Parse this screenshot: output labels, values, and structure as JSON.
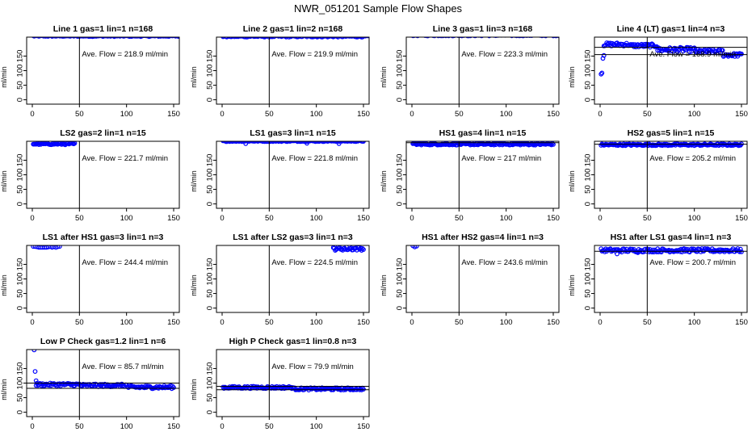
{
  "page_title": "NWR_051201  Sample Flow Shapes",
  "colors": {
    "points": "#0000ff",
    "axes": "#000000",
    "background": "#ffffff"
  },
  "chart_data": [
    {
      "type": "scatter",
      "title": "Line 1 gas=1 lin=1 n=168",
      "ylabel": "ml/min",
      "xlim": [
        0,
        150
      ],
      "ylim": [
        -15,
        215
      ],
      "xticks": [
        0,
        50,
        100,
        150
      ],
      "yticks": [
        0,
        50,
        100,
        150
      ],
      "annotation": "Ave. Flow =  218.9  ml/min",
      "vline_x": 50,
      "hlines": [],
      "series": [
        {
          "segments": [
            {
              "x0": 1,
              "x1": 168,
              "base": 219,
              "jitter": 2,
              "step": 1
            }
          ],
          "outliers": []
        }
      ]
    },
    {
      "type": "scatter",
      "title": "Line 2 gas=1 lin=2 n=168",
      "ylabel": "ml/min",
      "xlim": [
        0,
        150
      ],
      "ylim": [
        -15,
        215
      ],
      "xticks": [
        0,
        50,
        100,
        150
      ],
      "yticks": [
        0,
        50,
        100,
        150
      ],
      "annotation": "Ave. Flow =  219.9  ml/min",
      "vline_x": 50,
      "hlines": [],
      "series": [
        {
          "segments": [
            {
              "x0": 1,
              "x1": 168,
              "base": 218,
              "jitter": 3,
              "step": 1
            }
          ],
          "outliers": []
        }
      ]
    },
    {
      "type": "scatter",
      "title": "Line 3 gas=1 lin=3 n=168",
      "ylabel": "ml/min",
      "xlim": [
        0,
        150
      ],
      "ylim": [
        -15,
        215
      ],
      "xticks": [
        0,
        50,
        100,
        150
      ],
      "yticks": [
        0,
        50,
        100,
        150
      ],
      "annotation": "Ave. Flow =  223.3  ml/min",
      "vline_x": 50,
      "hlines": [],
      "series": [
        {
          "segments": [
            {
              "x0": 1,
              "x1": 168,
              "base": 222,
              "jitter": 3,
              "step": 1
            }
          ],
          "outliers": []
        }
      ]
    },
    {
      "type": "scatter",
      "title": "Line 4 (LT) gas=1 lin=4 n=3",
      "ylabel": "ml/min",
      "xlim": [
        0,
        150
      ],
      "ylim": [
        -15,
        215
      ],
      "xticks": [
        0,
        50,
        100,
        150
      ],
      "yticks": [
        0,
        50,
        100,
        150
      ],
      "annotation": "Ave. Flow =  168.9  ml/min",
      "vline_x": 50,
      "hlines": [
        180,
        155
      ],
      "series": [
        {
          "segments": [
            {
              "x0": 4,
              "x1": 30,
              "base": 190,
              "jitter": 6,
              "step": 1
            },
            {
              "x0": 31,
              "x1": 60,
              "base": 186,
              "jitter": 6,
              "step": 1
            },
            {
              "x0": 61,
              "x1": 100,
              "base": 172,
              "jitter": 8,
              "step": 1
            },
            {
              "x0": 101,
              "x1": 130,
              "base": 166,
              "jitter": 7,
              "step": 1
            },
            {
              "x0": 131,
              "x1": 150,
              "base": 154,
              "jitter": 6,
              "step": 1
            }
          ],
          "outliers": [
            [
              1,
              88
            ],
            [
              2,
              92
            ],
            [
              3,
              142
            ],
            [
              4,
              152
            ]
          ]
        }
      ]
    },
    {
      "type": "scatter",
      "title": "LS2 gas=2 lin=1 n=15",
      "ylabel": "ml/min",
      "xlim": [
        0,
        150
      ],
      "ylim": [
        -15,
        215
      ],
      "xticks": [
        0,
        50,
        100,
        150
      ],
      "yticks": [
        0,
        50,
        100,
        150
      ],
      "annotation": "Ave. Flow =  221.7  ml/min",
      "vline_x": 50,
      "hlines": [],
      "series": [
        {
          "segments": [
            {
              "x0": 1,
              "x1": 45,
              "base": 206,
              "jitter": 3,
              "step": 1
            }
          ],
          "outliers": []
        }
      ]
    },
    {
      "type": "scatter",
      "title": "LS1 gas=3 lin=1 n=15",
      "ylabel": "ml/min",
      "xlim": [
        0,
        150
      ],
      "ylim": [
        -15,
        215
      ],
      "xticks": [
        0,
        50,
        100,
        150
      ],
      "yticks": [
        0,
        50,
        100,
        150
      ],
      "annotation": "Ave. Flow =  221.8  ml/min",
      "vline_x": 50,
      "hlines": [],
      "series": [
        {
          "segments": [
            {
              "x0": 1,
              "x1": 150,
              "base": 216,
              "jitter": 2,
              "step": 1
            }
          ],
          "outliers": [
            [
              25,
              207
            ],
            [
              90,
              208
            ],
            [
              124,
              207
            ]
          ]
        }
      ]
    },
    {
      "type": "scatter",
      "title": "HS1 gas=4 lin=1 n=15",
      "ylabel": "ml/min",
      "xlim": [
        0,
        150
      ],
      "ylim": [
        -15,
        215
      ],
      "xticks": [
        0,
        50,
        100,
        150
      ],
      "yticks": [
        0,
        50,
        100,
        150
      ],
      "annotation": "Ave. Flow =  217  ml/min",
      "vline_x": 50,
      "hlines": [
        210
      ],
      "series": [
        {
          "segments": [
            {
              "x0": 1,
              "x1": 150,
              "base": 205,
              "jitter": 3,
              "step": 1
            }
          ],
          "outliers": []
        }
      ]
    },
    {
      "type": "scatter",
      "title": "HS2 gas=5 lin=1 n=15",
      "ylabel": "ml/min",
      "xlim": [
        0,
        150
      ],
      "ylim": [
        -15,
        215
      ],
      "xticks": [
        0,
        50,
        100,
        150
      ],
      "yticks": [
        0,
        50,
        100,
        150
      ],
      "annotation": "Ave. Flow =  205.2  ml/min",
      "vline_x": 50,
      "hlines": [
        205
      ],
      "series": [
        {
          "segments": [
            {
              "x0": 1,
              "x1": 150,
              "base": 203,
              "jitter": 3,
              "step": 1
            }
          ],
          "outliers": []
        }
      ]
    },
    {
      "type": "scatter",
      "title": "LS1 after HS1 gas=3 lin=1 n=3",
      "ylabel": "ml/min",
      "xlim": [
        0,
        150
      ],
      "ylim": [
        -15,
        215
      ],
      "xticks": [
        0,
        50,
        100,
        150
      ],
      "yticks": [
        0,
        50,
        100,
        150
      ],
      "annotation": "Ave. Flow =  244.4  ml/min",
      "vline_x": 50,
      "hlines": [],
      "series": [
        {
          "segments": [
            {
              "x0": 1,
              "x1": 30,
              "base": 210,
              "jitter": 2,
              "step": 2
            }
          ],
          "outliers": []
        }
      ]
    },
    {
      "type": "scatter",
      "title": "LS1 after LS2 gas=3 lin=1 n=3",
      "ylabel": "ml/min",
      "xlim": [
        0,
        150
      ],
      "ylim": [
        -15,
        215
      ],
      "xticks": [
        0,
        50,
        100,
        150
      ],
      "yticks": [
        0,
        50,
        100,
        150
      ],
      "annotation": "Ave. Flow =  224.5  ml/min",
      "vline_x": 50,
      "hlines": [],
      "series": [
        {
          "segments": [
            {
              "x0": 118,
              "x1": 150,
              "base": 204,
              "jitter": 6,
              "step": 1
            }
          ],
          "outliers": []
        }
      ]
    },
    {
      "type": "scatter",
      "title": "HS1 after HS2 gas=4 lin=1 n=3",
      "ylabel": "ml/min",
      "xlim": [
        0,
        150
      ],
      "ylim": [
        -15,
        215
      ],
      "xticks": [
        0,
        50,
        100,
        150
      ],
      "yticks": [
        0,
        50,
        100,
        150
      ],
      "annotation": "Ave. Flow =  243.6  ml/min",
      "vline_x": 50,
      "hlines": [],
      "series": [
        {
          "segments": [
            {
              "x0": 1,
              "x1": 6,
              "base": 212,
              "jitter": 2,
              "step": 2
            }
          ],
          "outliers": []
        }
      ]
    },
    {
      "type": "scatter",
      "title": "HS1 after LS1 gas=4 lin=1 n=3",
      "ylabel": "ml/min",
      "xlim": [
        0,
        150
      ],
      "ylim": [
        -15,
        215
      ],
      "xticks": [
        0,
        50,
        100,
        150
      ],
      "yticks": [
        0,
        50,
        100,
        150
      ],
      "annotation": "Ave. Flow =  200.7  ml/min",
      "vline_x": 50,
      "hlines": [
        195
      ],
      "series": [
        {
          "segments": [
            {
              "x0": 1,
              "x1": 150,
              "base": 198,
              "jitter": 6,
              "step": 1
            }
          ],
          "outliers": [
            [
              18,
              186
            ],
            [
              40,
              190
            ]
          ]
        }
      ]
    },
    {
      "type": "scatter",
      "title": "Low P Check gas=1.2 lin=1 n=6",
      "ylabel": "ml/min",
      "xlim": [
        0,
        150
      ],
      "ylim": [
        -15,
        215
      ],
      "xticks": [
        0,
        50,
        100,
        150
      ],
      "yticks": [
        0,
        50,
        100,
        150
      ],
      "annotation": "Ave. Flow =  85.7  ml/min",
      "vline_x": 50,
      "hlines": [
        100,
        82
      ],
      "series": [
        {
          "segments": [
            {
              "x0": 4,
              "x1": 50,
              "base": 95,
              "jitter": 5,
              "step": 1
            },
            {
              "x0": 51,
              "x1": 100,
              "base": 92,
              "jitter": 5,
              "step": 1
            },
            {
              "x0": 101,
              "x1": 150,
              "base": 86,
              "jitter": 5,
              "step": 1
            }
          ],
          "outliers": [
            [
              2,
              214
            ],
            [
              3,
              140
            ],
            [
              4,
              108
            ]
          ]
        }
      ]
    },
    {
      "type": "scatter",
      "title": "High P Check gas=1 lin=0.8 n=3",
      "ylabel": "ml/min",
      "xlim": [
        0,
        150
      ],
      "ylim": [
        -15,
        215
      ],
      "xticks": [
        0,
        50,
        100,
        150
      ],
      "yticks": [
        0,
        50,
        100,
        150
      ],
      "annotation": "Ave. Flow =  79.9  ml/min",
      "vline_x": 50,
      "hlines": [
        89,
        77
      ],
      "series": [
        {
          "segments": [
            {
              "x0": 1,
              "x1": 75,
              "base": 85,
              "jitter": 4,
              "step": 1
            },
            {
              "x0": 76,
              "x1": 150,
              "base": 80,
              "jitter": 4,
              "step": 1
            }
          ],
          "outliers": []
        }
      ]
    }
  ]
}
